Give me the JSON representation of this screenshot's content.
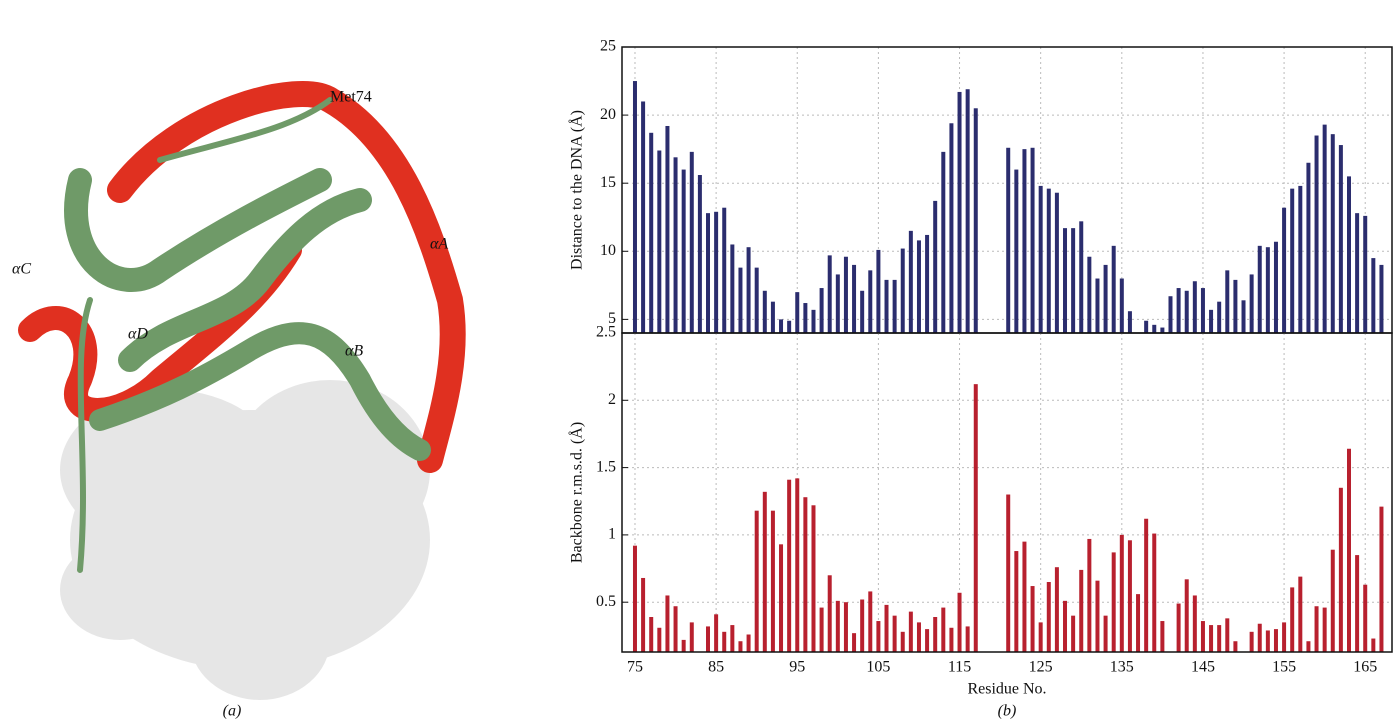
{
  "panel_a": {
    "labels": [
      "Met74",
      "αA",
      "αB",
      "αC",
      "αD"
    ],
    "caption": "(a)"
  },
  "panel_b": {
    "caption": "(b)"
  },
  "chart_data": [
    {
      "type": "bar",
      "y_label": "Distance to the DNA (Å)",
      "color": "#2b2d6e",
      "grid": true,
      "x": [
        75,
        76,
        77,
        78,
        79,
        80,
        81,
        82,
        83,
        84,
        85,
        86,
        87,
        88,
        89,
        90,
        91,
        92,
        93,
        94,
        95,
        96,
        97,
        98,
        99,
        100,
        101,
        102,
        103,
        104,
        105,
        106,
        107,
        108,
        109,
        110,
        111,
        112,
        113,
        114,
        115,
        116,
        117,
        118,
        119,
        120,
        121,
        122,
        123,
        124,
        125,
        126,
        127,
        128,
        129,
        130,
        131,
        132,
        133,
        134,
        135,
        136,
        137,
        138,
        139,
        140,
        141,
        142,
        143,
        144,
        145,
        146,
        147,
        148,
        149,
        150,
        151,
        152,
        153,
        154,
        155,
        156,
        157,
        158,
        159,
        160,
        161,
        162,
        163,
        164,
        165,
        166,
        167
      ],
      "values": [
        22.5,
        21.0,
        18.7,
        17.4,
        19.2,
        16.9,
        16.0,
        17.3,
        15.6,
        12.8,
        12.9,
        13.2,
        10.5,
        8.8,
        10.3,
        8.8,
        7.1,
        6.3,
        5.0,
        4.9,
        7.0,
        6.2,
        5.7,
        7.3,
        9.7,
        8.3,
        9.6,
        9.0,
        7.1,
        8.6,
        10.1,
        7.9,
        7.9,
        10.2,
        11.5,
        10.8,
        11.2,
        13.7,
        17.3,
        19.4,
        21.7,
        21.9,
        20.5,
        null,
        null,
        null,
        17.6,
        16.0,
        17.5,
        17.6,
        14.8,
        14.6,
        14.3,
        11.7,
        11.7,
        12.2,
        9.6,
        8.0,
        9.0,
        10.4,
        8.0,
        5.6,
        null,
        4.9,
        4.6,
        4.4,
        6.7,
        7.3,
        7.1,
        7.8,
        7.3,
        5.7,
        6.3,
        8.6,
        7.9,
        6.4,
        8.3,
        10.4,
        10.3,
        10.7,
        13.2,
        14.6,
        14.8,
        16.5,
        18.5,
        19.3,
        18.6,
        17.8,
        15.5,
        12.8,
        12.6,
        9.5,
        9.0
      ],
      "xlim": [
        73.4,
        168.3
      ],
      "ylim": [
        4,
        25
      ],
      "yticks": [
        5,
        10,
        15,
        20,
        25
      ]
    },
    {
      "type": "bar",
      "y_label": "Backbone r.m.s.d. (Å)",
      "x_label": "Residue No.",
      "color": "#b8202e",
      "grid": true,
      "x": [
        75,
        76,
        77,
        78,
        79,
        80,
        81,
        82,
        83,
        84,
        85,
        86,
        87,
        88,
        89,
        90,
        91,
        92,
        93,
        94,
        95,
        96,
        97,
        98,
        99,
        100,
        101,
        102,
        103,
        104,
        105,
        106,
        107,
        108,
        109,
        110,
        111,
        112,
        113,
        114,
        115,
        116,
        117,
        118,
        119,
        120,
        121,
        122,
        123,
        124,
        125,
        126,
        127,
        128,
        129,
        130,
        131,
        132,
        133,
        134,
        135,
        136,
        137,
        138,
        139,
        140,
        141,
        142,
        143,
        144,
        145,
        146,
        147,
        148,
        149,
        150,
        151,
        152,
        153,
        154,
        155,
        156,
        157,
        158,
        159,
        160,
        161,
        162,
        163,
        164,
        165,
        166,
        167
      ],
      "values": [
        0.92,
        0.68,
        0.39,
        0.31,
        0.55,
        0.47,
        0.22,
        0.35,
        null,
        0.32,
        0.41,
        0.28,
        0.33,
        0.21,
        0.26,
        1.18,
        1.32,
        1.18,
        0.93,
        1.41,
        1.42,
        1.28,
        1.22,
        0.46,
        0.7,
        0.51,
        0.5,
        0.27,
        0.52,
        0.58,
        0.36,
        0.48,
        0.4,
        0.28,
        0.43,
        0.35,
        0.3,
        0.39,
        0.46,
        0.31,
        0.57,
        0.32,
        2.12,
        null,
        null,
        null,
        1.3,
        0.88,
        0.95,
        0.62,
        0.35,
        0.65,
        0.76,
        0.51,
        0.4,
        0.74,
        0.97,
        0.66,
        0.4,
        0.87,
        1.0,
        0.96,
        0.56,
        1.12,
        1.01,
        0.36,
        null,
        0.49,
        0.67,
        0.55,
        0.36,
        0.33,
        0.33,
        0.38,
        0.21,
        null,
        0.28,
        0.34,
        0.29,
        0.3,
        0.35,
        0.61,
        0.69,
        0.21,
        0.47,
        0.46,
        0.89,
        1.35,
        1.64,
        0.85,
        0.63,
        0.23,
        1.21
      ],
      "xlim": [
        73.4,
        168.3
      ],
      "ylim": [
        0.13,
        2.5
      ],
      "yticks": [
        0.5,
        1,
        1.5,
        2,
        2.5
      ],
      "xticks": [
        75,
        85,
        95,
        105,
        115,
        125,
        135,
        145,
        155,
        165
      ]
    }
  ]
}
